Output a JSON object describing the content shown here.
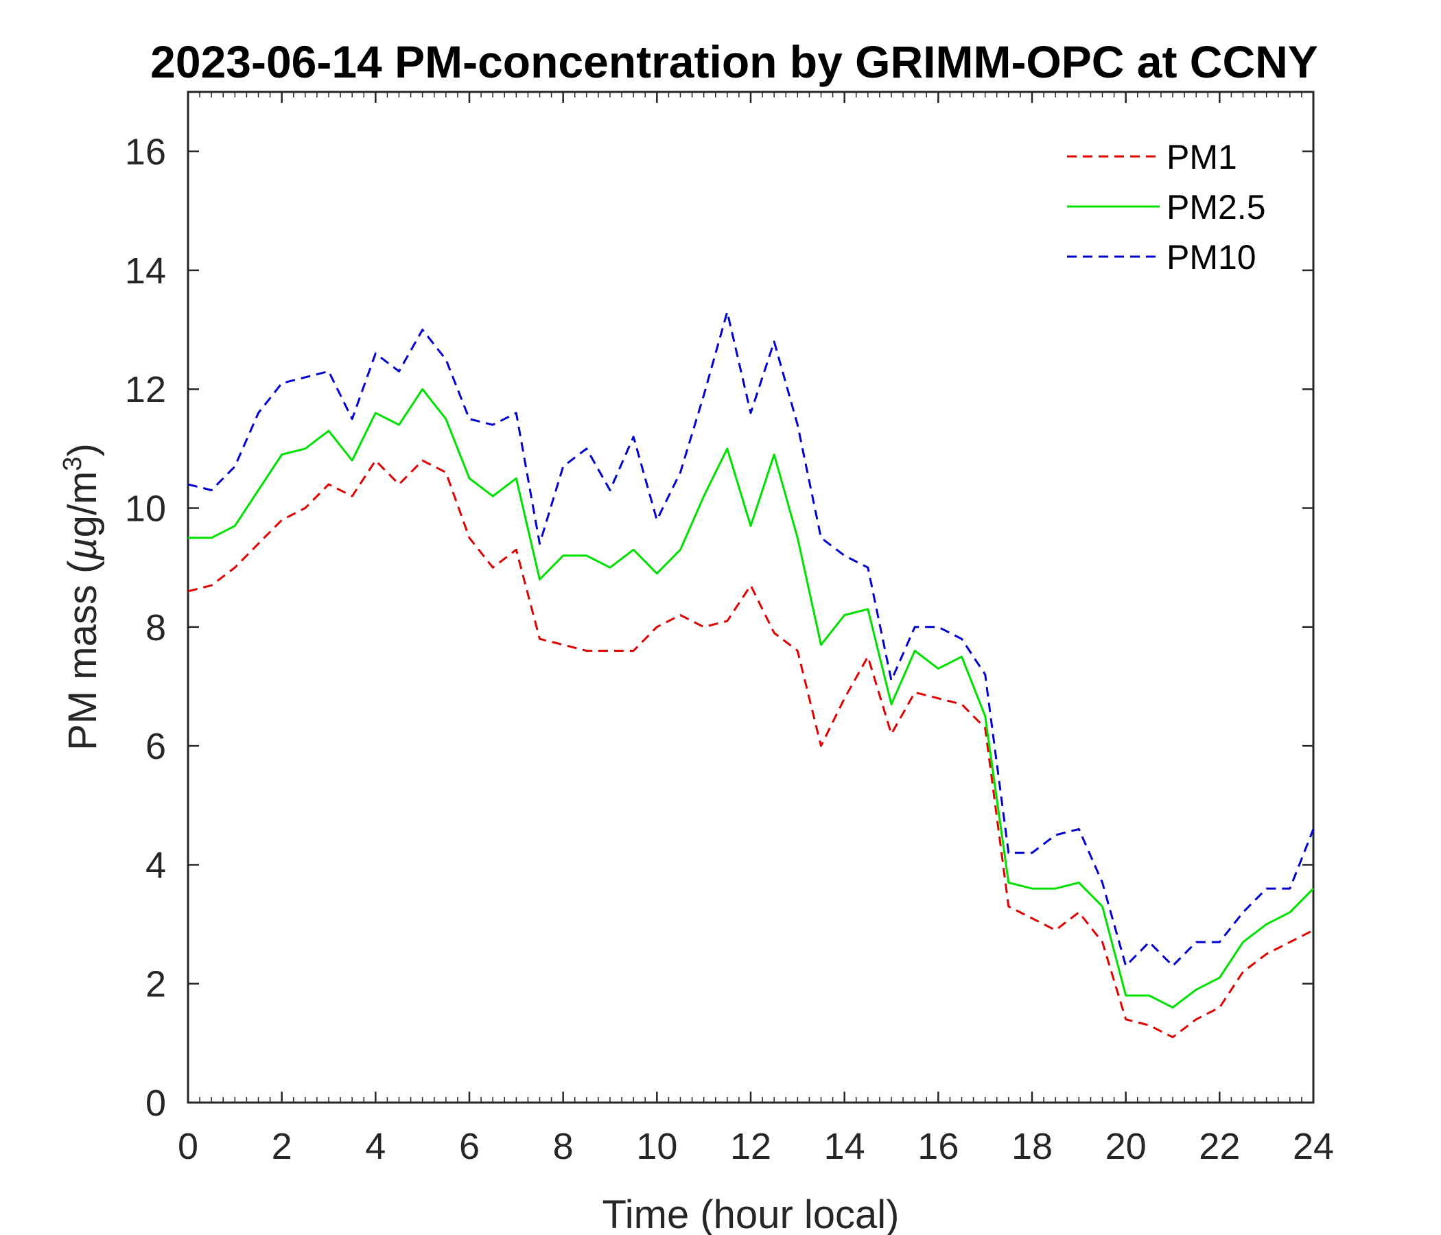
{
  "chart_data": {
    "type": "line",
    "title": "2023-06-14 PM-concentration by GRIMM-OPC at CCNY",
    "xlabel": "Time (hour local)",
    "ylabel": "PM mass (µg/m³)",
    "ylabel_parts": {
      "main": "PM mass (",
      "mu": "µ",
      "unit": "g/m",
      "sup": "3",
      "close": ")"
    },
    "xlim": [
      0,
      24
    ],
    "ylim": [
      0,
      17
    ],
    "xticks": [
      "0",
      "2",
      "4",
      "6",
      "8",
      "10",
      "12",
      "14",
      "16",
      "18",
      "20",
      "22",
      "24"
    ],
    "yticks": [
      "0",
      "2",
      "4",
      "6",
      "8",
      "10",
      "12",
      "14",
      "16"
    ],
    "legend_position": "top-right",
    "x": [
      0,
      0.5,
      1,
      1.5,
      2,
      2.5,
      3,
      3.5,
      4,
      4.5,
      5,
      5.5,
      6,
      6.5,
      7,
      7.5,
      8,
      8.5,
      9,
      9.5,
      10,
      10.5,
      11,
      11.5,
      12,
      12.5,
      13,
      13.5,
      14,
      14.5,
      15,
      15.5,
      16,
      16.5,
      17,
      17.5,
      18,
      18.5,
      19,
      19.5,
      20,
      20.5,
      21,
      21.5,
      22,
      22.5,
      23,
      23.5,
      24
    ],
    "series": [
      {
        "name": "PM1",
        "color": "#e00000",
        "dash": "dashed",
        "values": [
          8.6,
          8.7,
          9.0,
          9.4,
          9.8,
          10.0,
          10.4,
          10.2,
          10.8,
          10.4,
          10.8,
          10.6,
          9.5,
          9.0,
          9.3,
          7.8,
          7.7,
          7.6,
          7.6,
          7.6,
          8.0,
          8.2,
          8.0,
          8.1,
          8.7,
          7.9,
          7.6,
          6.0,
          6.8,
          7.5,
          6.2,
          6.9,
          6.8,
          6.7,
          6.3,
          3.3,
          3.1,
          2.9,
          3.2,
          2.7,
          1.4,
          1.3,
          1.1,
          1.4,
          1.6,
          2.2,
          2.5,
          2.7,
          2.9
        ]
      },
      {
        "name": "PM2.5",
        "color": "#00e000",
        "dash": "solid",
        "values": [
          9.5,
          9.5,
          9.7,
          10.3,
          10.9,
          11.0,
          11.3,
          10.8,
          11.6,
          11.4,
          12.0,
          11.5,
          10.5,
          10.2,
          10.5,
          8.8,
          9.2,
          9.2,
          9.0,
          9.3,
          8.9,
          9.3,
          10.2,
          11.0,
          9.7,
          10.9,
          9.5,
          7.7,
          8.2,
          8.3,
          6.7,
          7.6,
          7.3,
          7.5,
          6.5,
          3.7,
          3.6,
          3.6,
          3.7,
          3.3,
          1.8,
          1.8,
          1.6,
          1.9,
          2.1,
          2.7,
          3.0,
          3.2,
          3.6
        ]
      },
      {
        "name": "PM10",
        "color": "#0000d0",
        "dash": "dashed",
        "values": [
          10.4,
          10.3,
          10.7,
          11.6,
          12.1,
          12.2,
          12.3,
          11.5,
          12.6,
          12.3,
          13.0,
          12.5,
          11.5,
          11.4,
          11.6,
          9.4,
          10.7,
          11.0,
          10.3,
          11.2,
          9.8,
          10.6,
          11.9,
          13.3,
          11.6,
          12.8,
          11.4,
          9.5,
          9.2,
          9.0,
          7.1,
          8.0,
          8.0,
          7.8,
          7.2,
          4.2,
          4.2,
          4.5,
          4.6,
          3.7,
          2.3,
          2.7,
          2.3,
          2.7,
          2.7,
          3.2,
          3.6,
          3.6,
          4.6
        ]
      }
    ]
  }
}
